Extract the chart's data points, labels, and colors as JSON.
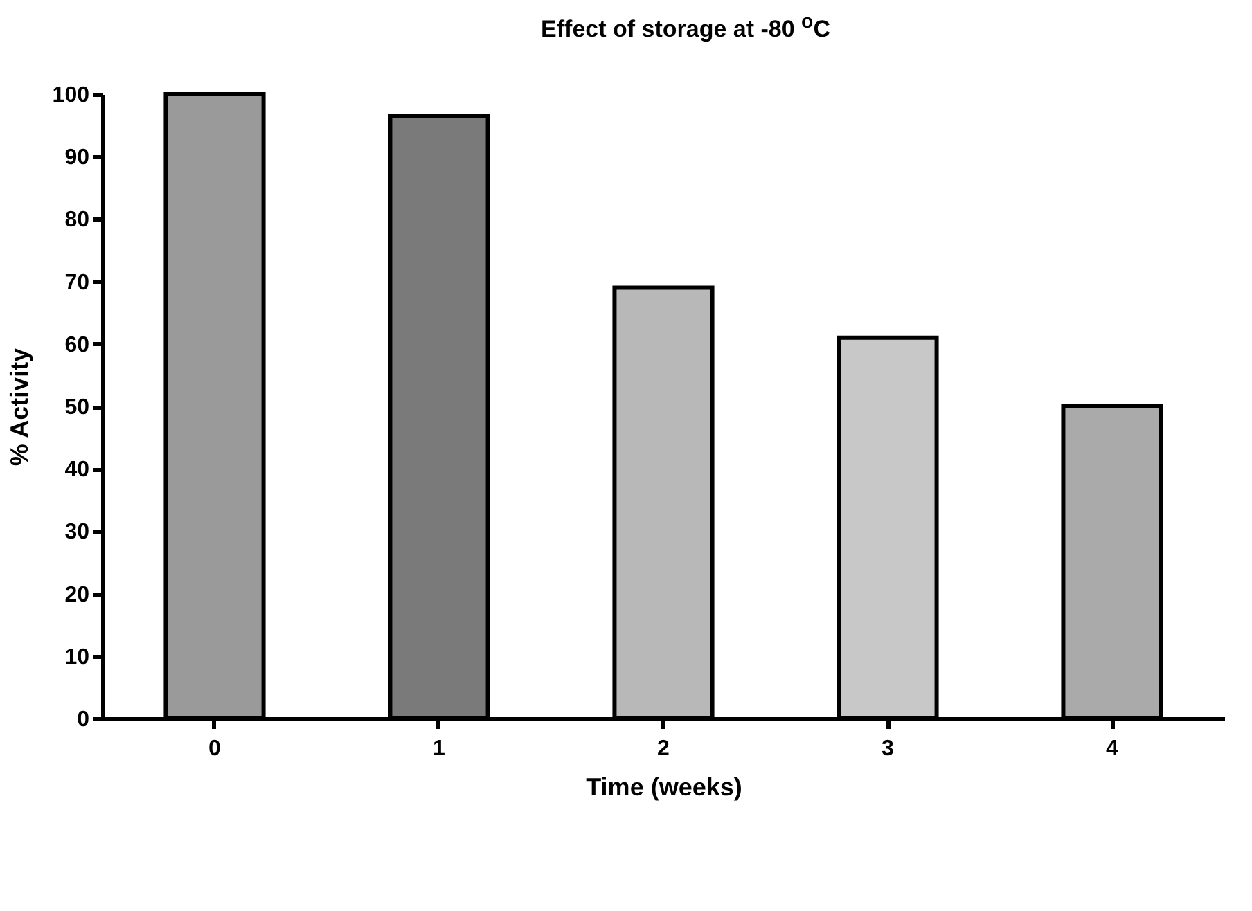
{
  "chart_data": {
    "type": "bar",
    "title": "Effect of  storage at -80 $^{o}$C",
    "xlabel": "Time (weeks)",
    "ylabel": "% Activity",
    "categories": [
      "0",
      "1",
      "2",
      "3",
      "4"
    ],
    "values": [
      100,
      96.5,
      69,
      61,
      50
    ],
    "colors": [
      "#9a9a9a",
      "#7a7a7a",
      "#b8b8b8",
      "#c8c8c8",
      "#aaaaaa"
    ],
    "ylim": [
      0,
      100
    ],
    "yticks": [
      0,
      10,
      20,
      30,
      40,
      50,
      60,
      70,
      80,
      90,
      100
    ],
    "grid": false
  }
}
